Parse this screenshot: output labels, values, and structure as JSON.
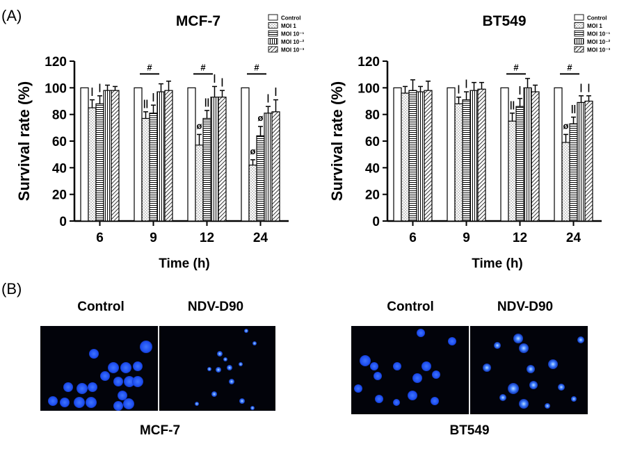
{
  "panel_a_label": "(A)",
  "panel_b_label": "(B)",
  "legend": [
    "Control",
    "MOI  1",
    "MOI  10⁻¹",
    "MOI  10⁻²",
    "MOI  10⁻³"
  ],
  "colors": {
    "blue_nuclei": "#1f55ff",
    "background": "#02030a"
  },
  "chart_data": [
    {
      "type": "bar",
      "title": "MCF-7",
      "xlabel": "Time (h)",
      "ylabel": "Survival rate (%)",
      "ylim": [
        0,
        120
      ],
      "yticks": [
        0,
        20,
        40,
        60,
        80,
        100,
        120
      ],
      "categories": [
        "6",
        "9",
        "12",
        "24"
      ],
      "series": [
        {
          "name": "Control",
          "values": [
            100,
            100,
            100,
            100
          ],
          "errors": [
            0,
            0,
            0,
            0
          ]
        },
        {
          "name": "MOI  1",
          "values": [
            85,
            77,
            57,
            42
          ],
          "errors": [
            6,
            5,
            8,
            4
          ]
        },
        {
          "name": "MOI  10⁻¹",
          "values": [
            88,
            81,
            77,
            64
          ],
          "errors": [
            6,
            6,
            6,
            7
          ]
        },
        {
          "name": "MOI  10⁻²",
          "values": [
            98,
            97,
            93,
            81
          ],
          "errors": [
            4,
            6,
            8,
            5
          ]
        },
        {
          "name": "MOI  10⁻³",
          "values": [
            98,
            98,
            93,
            82
          ],
          "errors": [
            3,
            7,
            5,
            9
          ]
        }
      ],
      "annotations": [
        {
          "category": "6",
          "symbols": [
            {
              "text": "|",
              "series": 1
            },
            {
              "text": "|",
              "series": 2
            }
          ]
        },
        {
          "category": "9",
          "hash": "#",
          "bar_span": [
            1,
            2
          ],
          "symbols": [
            {
              "text": "||",
              "series": 1
            },
            {
              "text": "|",
              "series": 2
            }
          ]
        },
        {
          "category": "12",
          "hash": "#",
          "bar_span": [
            1,
            2
          ],
          "symbols": [
            {
              "text": "ø",
              "series": 1
            },
            {
              "text": "||",
              "series": 2
            },
            {
              "text": "|",
              "series": 3
            },
            {
              "text": "|",
              "series": 4
            }
          ]
        },
        {
          "category": "24",
          "hash": "#",
          "bar_span": [
            1,
            2
          ],
          "symbols": [
            {
              "text": "ø",
              "series": 1
            },
            {
              "text": "ø",
              "series": 2
            },
            {
              "text": "|",
              "series": 3
            },
            {
              "text": "|",
              "series": 4
            }
          ]
        }
      ]
    },
    {
      "type": "bar",
      "title": "BT549",
      "xlabel": "Time (h)",
      "ylabel": "Survival rate (%)",
      "ylim": [
        0,
        120
      ],
      "yticks": [
        0,
        20,
        40,
        60,
        80,
        100,
        120
      ],
      "categories": [
        "6",
        "9",
        "12",
        "24"
      ],
      "series": [
        {
          "name": "Control",
          "values": [
            100,
            100,
            100,
            100
          ],
          "errors": [
            0,
            0,
            0,
            0
          ]
        },
        {
          "name": "MOI  1",
          "values": [
            96,
            88,
            75,
            59
          ],
          "errors": [
            5,
            5,
            6,
            6
          ]
        },
        {
          "name": "MOI  10⁻¹",
          "values": [
            98,
            91,
            86,
            73
          ],
          "errors": [
            8,
            6,
            6,
            5
          ]
        },
        {
          "name": "MOI  10⁻²",
          "values": [
            97,
            98,
            100,
            89
          ],
          "errors": [
            4,
            6,
            7,
            5
          ]
        },
        {
          "name": "MOI  10⁻³",
          "values": [
            98,
            99,
            97,
            90
          ],
          "errors": [
            7,
            5,
            5,
            4
          ]
        }
      ],
      "annotations": [
        {
          "category": "6",
          "symbols": []
        },
        {
          "category": "9",
          "symbols": [
            {
              "text": "|",
              "series": 1
            },
            {
              "text": "|",
              "series": 2
            }
          ]
        },
        {
          "category": "12",
          "hash": "#",
          "bar_span": [
            1,
            2
          ],
          "symbols": [
            {
              "text": "||",
              "series": 1
            },
            {
              "text": "|",
              "series": 2
            }
          ]
        },
        {
          "category": "24",
          "hash": "#",
          "bar_span": [
            1,
            2
          ],
          "symbols": [
            {
              "text": "ø",
              "series": 1
            },
            {
              "text": "||",
              "series": 2
            },
            {
              "text": "|",
              "series": 3
            },
            {
              "text": "|",
              "series": 4
            }
          ]
        }
      ]
    }
  ],
  "panel_b": {
    "column_labels": [
      "Control",
      "NDV-D90"
    ],
    "groups": [
      "MCF-7",
      "BT549"
    ]
  }
}
